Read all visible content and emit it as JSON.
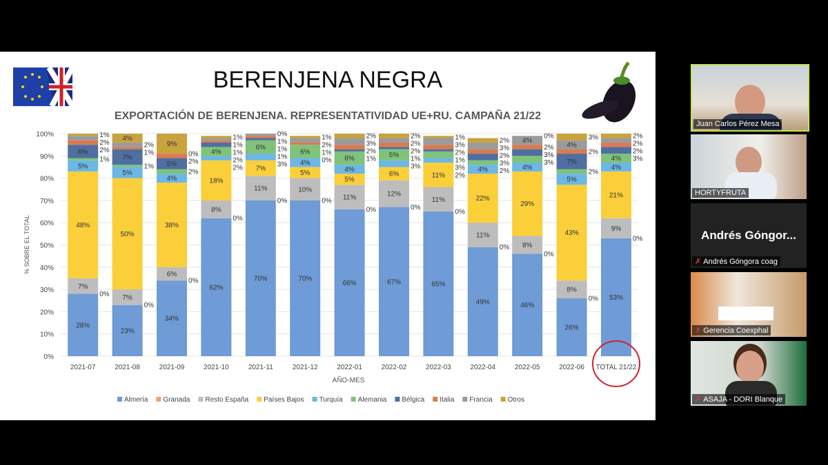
{
  "slide": {
    "title": "BERENJENA NEGRA"
  },
  "chart_data": {
    "type": "bar",
    "stacked": true,
    "title": "EXPORTACIÓN DE BERENJENA. REPRESENTATIVIDAD UE+RU. CAMPAÑA 21/22",
    "xlabel": "AÑO-MES",
    "ylabel": "% SOBRE EL TOTAL",
    "ylim": [
      0,
      100
    ],
    "yticks": [
      "0%",
      "10%",
      "20%",
      "30%",
      "40%",
      "50%",
      "60%",
      "70%",
      "80%",
      "90%",
      "100%"
    ],
    "grid": true,
    "legend_position": "bottom",
    "categories": [
      "2021-07",
      "2021-08",
      "2021-09",
      "2021-10",
      "2021-11",
      "2021-12",
      "2022-01",
      "2022-02",
      "2022-03",
      "2022-04",
      "2022-05",
      "2022-06",
      "TOTAL 21/22"
    ],
    "highlighted_category": "TOTAL 21/22",
    "highlight_color": "#d0202a",
    "series": [
      {
        "name": "Almería",
        "color": "#6f9bd6",
        "values": [
          28,
          23,
          34,
          62,
          70,
          70,
          66,
          67,
          65,
          49,
          46,
          26,
          53
        ]
      },
      {
        "name": "Granada",
        "color": "#f0a070",
        "values": [
          0,
          0,
          0,
          0,
          0,
          0,
          0,
          0,
          0,
          0,
          0,
          0,
          0
        ]
      },
      {
        "name": "Resto España",
        "color": "#bdbdbd",
        "values": [
          7,
          7,
          6,
          8,
          11,
          10,
          11,
          12,
          11,
          11,
          8,
          8,
          9
        ]
      },
      {
        "name": "Países Bajos",
        "color": "#fbcf3a",
        "values": [
          48,
          50,
          38,
          18,
          7,
          5,
          5,
          6,
          11,
          22,
          29,
          43,
          21
        ]
      },
      {
        "name": "Turquía",
        "color": "#6cb7e4",
        "values": [
          5,
          5,
          4,
          2,
          3,
          4,
          4,
          3,
          2,
          4,
          4,
          5,
          4
        ]
      },
      {
        "name": "Alemania",
        "color": "#7fc37a",
        "values": [
          1,
          1,
          2,
          4,
          6,
          6,
          6,
          5,
          3,
          2,
          3,
          2,
          4
        ]
      },
      {
        "name": "Bélgica",
        "color": "#4f6fa0",
        "values": [
          6,
          7,
          5,
          2,
          1,
          0,
          1,
          1,
          1,
          3,
          3,
          7,
          3
        ]
      },
      {
        "name": "Italia",
        "color": "#db7a4f",
        "values": [
          2,
          1,
          2,
          1,
          1,
          1,
          2,
          2,
          2,
          2,
          2,
          2,
          2
        ]
      },
      {
        "name": "Francia",
        "color": "#9b9b9b",
        "values": [
          2,
          2,
          0,
          1,
          1,
          2,
          3,
          2,
          3,
          3,
          4,
          4,
          2
        ]
      },
      {
        "name": "Otros",
        "color": "#c8a33e",
        "values": [
          1,
          4,
          9,
          1,
          0,
          1,
          2,
          2,
          1,
          2,
          0,
          3,
          2
        ]
      }
    ]
  },
  "participants": [
    {
      "name": "Juan Carlos Pérez Mesa",
      "active": true
    },
    {
      "name": "HORTYFRUTA"
    },
    {
      "name": "Andrés Góngora coag",
      "display": "Andrés  Góngor..."
    },
    {
      "name": "Gerencia Coexphal"
    },
    {
      "name": "ASAJA - DORI Blanque"
    }
  ]
}
